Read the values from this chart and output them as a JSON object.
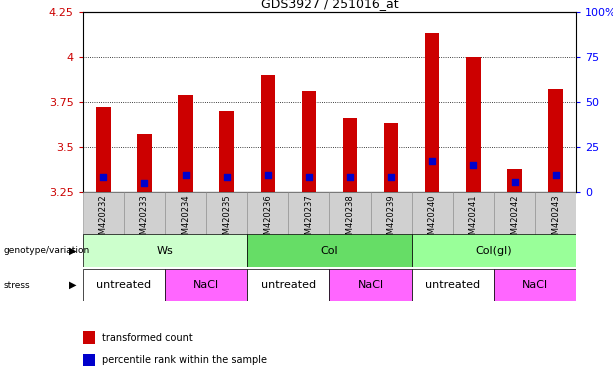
{
  "title": "GDS3927 / 251016_at",
  "samples": [
    "GSM420232",
    "GSM420233",
    "GSM420234",
    "GSM420235",
    "GSM420236",
    "GSM420237",
    "GSM420238",
    "GSM420239",
    "GSM420240",
    "GSM420241",
    "GSM420242",
    "GSM420243"
  ],
  "bar_tops": [
    3.72,
    3.57,
    3.79,
    3.7,
    3.9,
    3.81,
    3.66,
    3.63,
    4.13,
    4.0,
    3.38,
    3.82
  ],
  "bar_bottom": 3.25,
  "blue_dots": [
    3.335,
    3.3,
    3.345,
    3.335,
    3.345,
    3.335,
    3.335,
    3.335,
    3.42,
    3.4,
    3.305,
    3.345
  ],
  "ylim": [
    3.25,
    4.25
  ],
  "y_ticks_left": [
    3.25,
    3.5,
    3.75,
    4.0,
    4.25
  ],
  "y_ticks_right_vals": [
    3.25,
    3.5,
    3.75,
    4.0,
    4.25
  ],
  "y_ticks_right_labels": [
    "0",
    "25",
    "50",
    "75",
    "100%"
  ],
  "ytick_left_labels": [
    "3.25",
    "3.5",
    "3.75",
    "4",
    "4.25"
  ],
  "gridlines": [
    3.5,
    3.75,
    4.0
  ],
  "bar_color": "#CC0000",
  "blue_color": "#0000CC",
  "bg_color": "#FFFFFF",
  "genotype_groups": [
    {
      "label": "Ws",
      "start": 0,
      "end": 4,
      "color": "#CCFFCC"
    },
    {
      "label": "Col",
      "start": 4,
      "end": 8,
      "color": "#66DD66"
    },
    {
      "label": "Col(gl)",
      "start": 8,
      "end": 12,
      "color": "#99FF99"
    }
  ],
  "stress_groups": [
    {
      "label": "untreated",
      "start": 0,
      "end": 2,
      "color": "#FFFFFF"
    },
    {
      "label": "NaCl",
      "start": 2,
      "end": 4,
      "color": "#FF66FF"
    },
    {
      "label": "untreated",
      "start": 4,
      "end": 6,
      "color": "#FFFFFF"
    },
    {
      "label": "NaCl",
      "start": 6,
      "end": 8,
      "color": "#FF66FF"
    },
    {
      "label": "untreated",
      "start": 8,
      "end": 10,
      "color": "#FFFFFF"
    },
    {
      "label": "NaCl",
      "start": 10,
      "end": 12,
      "color": "#FF66FF"
    }
  ],
  "legend_items": [
    {
      "label": "transformed count",
      "color": "#CC0000"
    },
    {
      "label": "percentile rank within the sample",
      "color": "#0000CC"
    }
  ],
  "left_color": "#CC0000",
  "right_color": "#0000FF",
  "genotype_label": "genotype/variation",
  "stress_label": "stress",
  "bar_width": 0.35
}
